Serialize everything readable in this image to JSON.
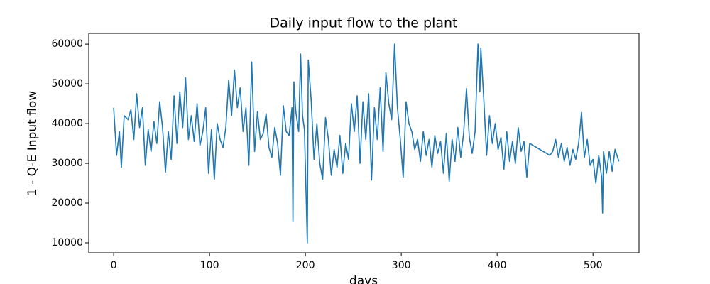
{
  "chart_data": {
    "type": "line",
    "title": "Daily input flow to the plant",
    "x_label": "days",
    "y_label": "1 - Q-E Input flow",
    "color": "#1f77b4",
    "x": [
      0,
      3,
      6,
      8,
      11,
      15,
      18,
      21,
      24,
      27,
      30,
      33,
      36,
      39,
      42,
      45,
      48,
      51,
      54,
      57,
      60,
      63,
      66,
      69,
      72,
      75,
      78,
      81,
      84,
      87,
      90,
      93,
      96,
      99,
      102,
      105,
      108,
      111,
      114,
      117,
      120,
      123,
      126,
      129,
      132,
      135,
      138,
      141,
      144,
      147,
      150,
      153,
      156,
      159,
      162,
      165,
      168,
      171,
      174,
      177,
      180,
      183,
      186,
      187,
      188,
      190,
      193,
      195,
      197,
      199,
      202,
      203,
      206,
      209,
      212,
      215,
      218,
      221,
      224,
      227,
      230,
      233,
      236,
      239,
      242,
      245,
      248,
      251,
      254,
      257,
      260,
      263,
      266,
      269,
      272,
      275,
      278,
      281,
      284,
      287,
      290,
      293,
      296,
      299,
      302,
      305,
      308,
      311,
      314,
      317,
      320,
      323,
      326,
      329,
      332,
      335,
      338,
      341,
      344,
      347,
      350,
      353,
      356,
      359,
      362,
      365,
      368,
      371,
      374,
      377,
      380,
      382,
      383,
      386,
      389,
      392,
      395,
      398,
      401,
      404,
      407,
      410,
      413,
      416,
      419,
      422,
      425,
      428,
      431,
      434,
      455,
      458,
      461,
      464,
      467,
      470,
      473,
      476,
      479,
      482,
      485,
      488,
      491,
      494,
      497,
      500,
      503,
      506,
      509,
      510,
      511,
      514,
      517,
      520,
      523,
      527
    ],
    "values": [
      44000,
      32000,
      38000,
      29000,
      42000,
      41000,
      43500,
      36000,
      47500,
      39000,
      44000,
      29500,
      38500,
      33000,
      40500,
      35000,
      45500,
      39000,
      27800,
      38000,
      31000,
      47000,
      35000,
      48000,
      39000,
      51500,
      36000,
      42000,
      35500,
      45000,
      34500,
      38000,
      44000,
      27500,
      38500,
      26000,
      40000,
      36000,
      34000,
      39000,
      51000,
      42000,
      53500,
      44000,
      49000,
      38000,
      44000,
      29500,
      55500,
      33000,
      43000,
      36000,
      37500,
      42500,
      34000,
      31500,
      39000,
      35000,
      27000,
      44500,
      38000,
      37000,
      44000,
      15500,
      50500,
      43000,
      38000,
      57500,
      42000,
      38500,
      10000,
      56000,
      46000,
      31000,
      40000,
      30000,
      26000,
      41500,
      36000,
      27000,
      33500,
      29000,
      37000,
      27500,
      35000,
      31000,
      45000,
      38000,
      47000,
      30000,
      45500,
      36000,
      47500,
      25800,
      44000,
      36000,
      49000,
      33000,
      52800,
      45000,
      41000,
      60000,
      44000,
      36000,
      26500,
      45500,
      40000,
      38000,
      33500,
      36000,
      30500,
      38000,
      32000,
      36000,
      29000,
      37000,
      32500,
      35500,
      27500,
      37500,
      25500,
      36000,
      30500,
      39000,
      31500,
      37500,
      48800,
      36500,
      32500,
      38000,
      60000,
      48000,
      59000,
      46500,
      32000,
      42000,
      35000,
      40000,
      33500,
      36500,
      28500,
      38000,
      30500,
      35500,
      30000,
      39000,
      33000,
      35500,
      26500,
      35000,
      32000,
      33000,
      36000,
      31500,
      35000,
      30500,
      34000,
      29500,
      33500,
      31000,
      35000,
      42800,
      31500,
      36000,
      29500,
      31000,
      25000,
      32000,
      26500,
      17500,
      33000,
      27500,
      33000,
      28000,
      33500,
      30500
    ],
    "xlim": [
      -26,
      548
    ],
    "ylim": [
      7500,
      62700
    ],
    "xticks": [
      0,
      100,
      200,
      300,
      400,
      500
    ],
    "yticks": [
      10000,
      20000,
      30000,
      40000,
      50000,
      60000
    ]
  }
}
